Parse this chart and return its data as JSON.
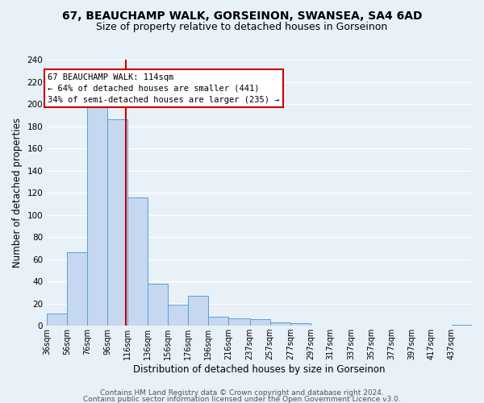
{
  "title": "67, BEAUCHAMP WALK, GORSEINON, SWANSEA, SA4 6AD",
  "subtitle": "Size of property relative to detached houses in Gorseinon",
  "xlabel": "Distribution of detached houses by size in Gorseinon",
  "ylabel": "Number of detached properties",
  "bar_color": "#c5d8f0",
  "bar_edge_color": "#5a9fd4",
  "bin_edges": [
    36,
    56,
    76,
    96,
    116,
    136,
    156,
    176,
    196,
    216,
    237,
    257,
    277,
    297,
    317,
    337,
    357,
    377,
    397,
    417,
    437,
    457
  ],
  "bin_labels": [
    "36sqm",
    "56sqm",
    "76sqm",
    "96sqm",
    "116sqm",
    "136sqm",
    "156sqm",
    "176sqm",
    "196sqm",
    "216sqm",
    "237sqm",
    "257sqm",
    "277sqm",
    "297sqm",
    "317sqm",
    "337sqm",
    "357sqm",
    "377sqm",
    "397sqm",
    "417sqm",
    "437sqm"
  ],
  "counts": [
    11,
    66,
    199,
    186,
    116,
    38,
    19,
    27,
    8,
    7,
    6,
    3,
    2,
    0,
    0,
    0,
    0,
    0,
    0,
    0,
    1
  ],
  "property_size": 114,
  "vline_color": "#cc0000",
  "annotation_text": "67 BEAUCHAMP WALK: 114sqm\n← 64% of detached houses are smaller (441)\n34% of semi-detached houses are larger (235) →",
  "annotation_box_color": "#ffffff",
  "annotation_box_edge": "#cc0000",
  "ylim": [
    0,
    240
  ],
  "yticks": [
    0,
    20,
    40,
    60,
    80,
    100,
    120,
    140,
    160,
    180,
    200,
    220,
    240
  ],
  "footer1": "Contains HM Land Registry data © Crown copyright and database right 2024.",
  "footer2": "Contains public sector information licensed under the Open Government Licence v3.0.",
  "background_color": "#e8f0f8",
  "plot_bg_color": "#e8f0f8",
  "grid_color": "#ffffff",
  "title_fontsize": 10,
  "subtitle_fontsize": 9,
  "axis_label_fontsize": 8.5,
  "tick_fontsize": 7.5,
  "annotation_fontsize": 7.5,
  "footer_fontsize": 6.5
}
